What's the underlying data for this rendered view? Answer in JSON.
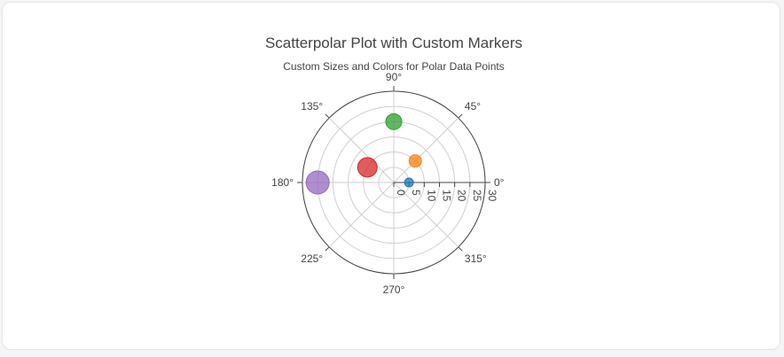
{
  "chart_data": {
    "type": "scatterpolar",
    "title": "Scatterpolar Plot with Custom Markers",
    "subtitle": "Custom Sizes and Colors for Polar Data Points",
    "radial_axis": {
      "range": [
        0,
        30
      ],
      "ticks": [
        0,
        5,
        10,
        15,
        20,
        25,
        30
      ],
      "tick_labels": [
        "0",
        "5",
        "10",
        "15",
        "20",
        "25",
        "30"
      ]
    },
    "angular_axis": {
      "ticks": [
        0,
        45,
        90,
        135,
        180,
        225,
        270,
        315
      ],
      "tick_labels": [
        "0°",
        "45°",
        "90°",
        "135°",
        "180°",
        "225°",
        "270°",
        "315°"
      ]
    },
    "grid": true,
    "points": [
      {
        "r": 5,
        "theta": 0,
        "size": 8,
        "color": "#1f77b4"
      },
      {
        "r": 10,
        "theta": 45,
        "size": 12,
        "color": "#ff7f0e"
      },
      {
        "r": 20,
        "theta": 90,
        "size": 16,
        "color": "#2ca02c"
      },
      {
        "r": 10,
        "theta": 150,
        "size": 20,
        "color": "#d62728"
      },
      {
        "r": 25,
        "theta": 180,
        "size": 24,
        "color": "#9467bd"
      }
    ]
  }
}
